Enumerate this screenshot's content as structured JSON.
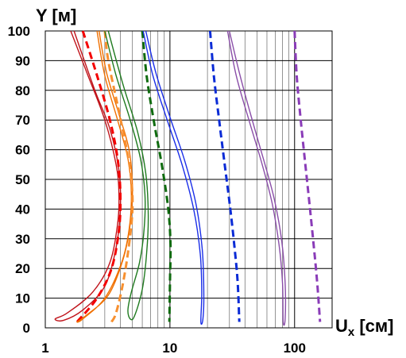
{
  "chart_data": {
    "type": "line",
    "ylabel": "Y [м]",
    "xlabel_main": "U",
    "xlabel_sub": "x",
    "xlabel_unit": " [см]",
    "x_scale": "log",
    "xlim": [
      1,
      200
    ],
    "ylim": [
      0,
      100
    ],
    "x_ticks": [
      {
        "value": 1,
        "label": "1"
      },
      {
        "value": 10,
        "label": "10"
      },
      {
        "value": 100,
        "label": "100"
      }
    ],
    "y_ticks": [
      {
        "value": 0,
        "label": "0"
      },
      {
        "value": 10,
        "label": "10"
      },
      {
        "value": 20,
        "label": "20"
      },
      {
        "value": 30,
        "label": "30"
      },
      {
        "value": 40,
        "label": "40"
      },
      {
        "value": 50,
        "label": "50"
      },
      {
        "value": 60,
        "label": "60"
      },
      {
        "value": 70,
        "label": "70"
      },
      {
        "value": 80,
        "label": "80"
      },
      {
        "value": 90,
        "label": "90"
      },
      {
        "value": 100,
        "label": "100"
      }
    ],
    "grid": true,
    "series": [
      {
        "color": "#c0141b",
        "style": "double",
        "points": [
          [
            1.6,
            100
          ],
          [
            2.2,
            85
          ],
          [
            3.0,
            70
          ],
          [
            3.7,
            55
          ],
          [
            3.9,
            45
          ],
          [
            3.8,
            35
          ],
          [
            3.3,
            22
          ],
          [
            2.4,
            12
          ],
          [
            1.5,
            5
          ],
          [
            1.2,
            3
          ],
          [
            1.4,
            2.5
          ],
          [
            2.0,
            6
          ],
          [
            3.0,
            14
          ],
          [
            3.7,
            27
          ],
          [
            4.0,
            40
          ],
          [
            3.9,
            53
          ],
          [
            3.3,
            67
          ],
          [
            2.5,
            80
          ],
          [
            1.7,
            100
          ]
        ]
      },
      {
        "color": "#f40000",
        "style": "dashed",
        "points": [
          [
            2.0,
            100
          ],
          [
            2.6,
            85
          ],
          [
            3.3,
            70
          ],
          [
            3.8,
            57
          ],
          [
            4.0,
            45
          ],
          [
            3.9,
            33
          ],
          [
            3.4,
            20
          ],
          [
            2.6,
            10
          ],
          [
            1.8,
            2
          ]
        ]
      },
      {
        "color": "#f07000",
        "style": "double",
        "points": [
          [
            2.6,
            100
          ],
          [
            3.0,
            85
          ],
          [
            3.8,
            70
          ],
          [
            4.6,
            57
          ],
          [
            4.9,
            45
          ],
          [
            4.7,
            33
          ],
          [
            4.1,
            22
          ],
          [
            3.0,
            10
          ],
          [
            2.0,
            3
          ],
          [
            1.8,
            2
          ],
          [
            2.1,
            4
          ],
          [
            3.2,
            11
          ],
          [
            4.2,
            23
          ],
          [
            4.8,
            35
          ],
          [
            5.0,
            47
          ],
          [
            4.7,
            60
          ],
          [
            3.9,
            72
          ],
          [
            3.1,
            86
          ],
          [
            2.7,
            100
          ]
        ]
      },
      {
        "color": "#f79030",
        "style": "dashed",
        "points": [
          [
            3.0,
            100
          ],
          [
            3.2,
            90
          ],
          [
            3.8,
            75
          ],
          [
            4.5,
            60
          ],
          [
            4.9,
            50
          ],
          [
            5.0,
            40
          ],
          [
            4.7,
            28
          ],
          [
            4.2,
            15
          ],
          [
            3.7,
            5
          ],
          [
            3.4,
            2
          ]
        ]
      },
      {
        "color": "#1f7a1f",
        "style": "double",
        "points": [
          [
            3.0,
            100
          ],
          [
            3.7,
            85
          ],
          [
            4.8,
            70
          ],
          [
            5.8,
            57
          ],
          [
            6.3,
            45
          ],
          [
            6.2,
            33
          ],
          [
            5.7,
            22
          ],
          [
            4.9,
            12
          ],
          [
            4.6,
            6
          ],
          [
            4.8,
            3
          ],
          [
            5.2,
            4
          ],
          [
            6.0,
            13
          ],
          [
            6.5,
            25
          ],
          [
            6.7,
            38
          ],
          [
            6.4,
            52
          ],
          [
            5.5,
            66
          ],
          [
            4.2,
            82
          ],
          [
            3.2,
            100
          ]
        ]
      },
      {
        "color": "#0f6b0f",
        "style": "dashed",
        "points": [
          [
            6.0,
            100
          ],
          [
            6.5,
            85
          ],
          [
            7.4,
            70
          ],
          [
            8.6,
            55
          ],
          [
            9.7,
            40
          ],
          [
            10.1,
            28
          ],
          [
            10.0,
            15
          ],
          [
            9.9,
            2
          ]
        ]
      },
      {
        "color": "#1a2ee8",
        "style": "double",
        "points": [
          [
            6.1,
            100
          ],
          [
            7.3,
            85
          ],
          [
            9.5,
            70
          ],
          [
            12.5,
            55
          ],
          [
            15.5,
            40
          ],
          [
            17.5,
            25
          ],
          [
            18.0,
            12
          ],
          [
            17.7,
            2
          ],
          [
            18.4,
            3
          ],
          [
            18.7,
            12
          ],
          [
            18.2,
            26
          ],
          [
            16.3,
            41
          ],
          [
            13.2,
            56
          ],
          [
            10.0,
            71
          ],
          [
            7.7,
            86
          ],
          [
            6.4,
            100
          ]
        ]
      },
      {
        "color": "#0a2bd6",
        "style": "dashed",
        "points": [
          [
            21.0,
            100
          ],
          [
            22.5,
            85
          ],
          [
            24.8,
            70
          ],
          [
            27.5,
            55
          ],
          [
            30.5,
            40
          ],
          [
            33.0,
            27
          ],
          [
            35.0,
            15
          ],
          [
            36.0,
            2
          ]
        ]
      },
      {
        "color": "#8a4ea8",
        "style": "double",
        "points": [
          [
            29.0,
            100
          ],
          [
            34.0,
            85
          ],
          [
            43.0,
            70
          ],
          [
            55.0,
            55
          ],
          [
            66.0,
            42
          ],
          [
            75.0,
            28
          ],
          [
            80.0,
            15
          ],
          [
            81.0,
            2
          ],
          [
            84.0,
            3
          ],
          [
            84.0,
            15
          ],
          [
            79.0,
            29
          ],
          [
            69.0,
            43
          ],
          [
            57.0,
            56
          ],
          [
            45.0,
            71
          ],
          [
            36.0,
            86
          ],
          [
            30.0,
            100
          ]
        ]
      },
      {
        "color": "#8a3cb8",
        "style": "dashed",
        "points": [
          [
            100.0,
            100
          ],
          [
            104.0,
            85
          ],
          [
            112.0,
            70
          ],
          [
            122.0,
            55
          ],
          [
            133.0,
            40
          ],
          [
            143.0,
            27
          ],
          [
            152.0,
            15
          ],
          [
            160.0,
            2
          ]
        ]
      }
    ]
  }
}
